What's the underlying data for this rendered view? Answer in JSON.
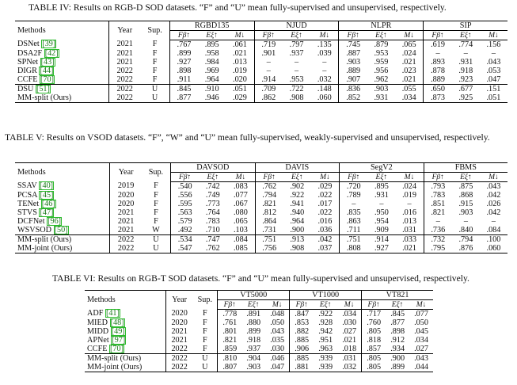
{
  "tables": [
    {
      "caption": "TABLE IV: Results on RGB-D SOD datasets. “F” and “U” mean fully-supervised and unsupervised, respectively.",
      "col_methods": "Methods",
      "col_year": "Year",
      "col_sup": "Sup.",
      "groups": [
        "RGBD135",
        "NJUD",
        "NLPR",
        "SIP"
      ],
      "metrics": [
        "Fβ↑",
        "Eξ↑",
        "M↓"
      ],
      "rows": [
        {
          "name": "DSNet",
          "ref": "[39]",
          "year": "2021",
          "sup": "F",
          "vals": [
            ".767",
            ".895",
            ".061",
            ".719",
            ".797",
            ".135",
            ".745",
            ".879",
            ".065",
            ".619",
            ".774",
            ".156"
          ],
          "group": 1
        },
        {
          "name": "DSA2F",
          "ref": "[42]",
          "year": "2021",
          "sup": "F",
          "vals": [
            ".899",
            ".958",
            ".021",
            ".901",
            ".937",
            ".039",
            ".887",
            ".953",
            ".024",
            "–",
            "–",
            "–"
          ],
          "group": 1
        },
        {
          "name": "SPNet",
          "ref": "[43]",
          "year": "2021",
          "sup": "F",
          "vals": [
            ".927",
            ".984",
            ".013",
            "–",
            "–",
            "–",
            ".903",
            ".959",
            ".021",
            ".893",
            ".931",
            ".043"
          ],
          "group": 1
        },
        {
          "name": "DIGR",
          "ref": "[44]",
          "year": "2022",
          "sup": "F",
          "vals": [
            ".898",
            ".969",
            ".019",
            "–",
            "–",
            "–",
            ".889",
            ".956",
            ".023",
            ".878",
            ".918",
            ".053"
          ],
          "group": 1
        },
        {
          "name": "CCFE",
          "ref": "[70]",
          "year": "2022",
          "sup": "F",
          "vals": [
            ".911",
            ".964",
            ".020",
            ".914",
            ".953",
            ".032",
            ".907",
            ".962",
            ".021",
            ".889",
            ".923",
            ".047"
          ],
          "group": 1
        },
        {
          "name": "DSU",
          "ref": "[51]",
          "year": "2022",
          "sup": "U",
          "vals": [
            ".845",
            ".910",
            ".051",
            ".709",
            ".722",
            ".148",
            ".836",
            ".903",
            ".055",
            ".650",
            ".677",
            ".151"
          ],
          "group": 2
        },
        {
          "name": "MM-split (Ours)",
          "ref": "",
          "year": "2022",
          "sup": "U",
          "vals": [
            ".877",
            ".946",
            ".029",
            ".862",
            ".908",
            ".060",
            ".852",
            ".931",
            ".034",
            ".873",
            ".925",
            ".051"
          ],
          "group": 2
        }
      ]
    },
    {
      "caption": "TABLE V: Results on VSOD datasets. “F”, “W” and “U” mean fully-supervised, weakly-supervised and unsupervised, respectively.",
      "col_methods": "Methods",
      "col_year": "Year",
      "col_sup": "Sup.",
      "groups": [
        "DAVSOD",
        "DAVIS",
        "SegV2",
        "FBMS"
      ],
      "metrics": [
        "Fβ↑",
        "Eξ↑",
        "M↓"
      ],
      "rows": [
        {
          "name": "SSAV",
          "ref": "[40]",
          "year": "2019",
          "sup": "F",
          "vals": [
            ".540",
            ".742",
            ".083",
            ".762",
            ".902",
            ".029",
            ".720",
            ".895",
            ".024",
            ".793",
            ".875",
            ".043"
          ],
          "group": 1
        },
        {
          "name": "PCSA",
          "ref": "[45]",
          "year": "2020",
          "sup": "F",
          "vals": [
            ".556",
            ".749",
            ".077",
            ".794",
            ".922",
            ".022",
            ".789",
            ".931",
            ".019",
            ".783",
            ".868",
            ".042"
          ],
          "group": 1
        },
        {
          "name": "TENet",
          "ref": "[46]",
          "year": "2020",
          "sup": "F",
          "vals": [
            ".595",
            ".773",
            ".067",
            ".821",
            ".941",
            ".017",
            "–",
            "–",
            "–",
            ".851",
            ".915",
            ".026"
          ],
          "group": 1
        },
        {
          "name": "STVS",
          "ref": "[47]",
          "year": "2021",
          "sup": "F",
          "vals": [
            ".563",
            ".764",
            ".080",
            ".812",
            ".940",
            ".022",
            ".835",
            ".950",
            ".016",
            ".821",
            ".903",
            ".042"
          ],
          "group": 1
        },
        {
          "name": "DCFNet",
          "ref": "[96]",
          "year": "2021",
          "sup": "F",
          "vals": [
            ".579",
            ".783",
            ".065",
            ".864",
            ".964",
            ".016",
            ".863",
            ".954",
            ".013",
            "–",
            "–",
            "–"
          ],
          "group": 1
        },
        {
          "name": "WSVSOD",
          "ref": "[50]",
          "year": "2021",
          "sup": "W",
          "vals": [
            ".492",
            ".710",
            ".103",
            ".731",
            ".900",
            ".036",
            ".711",
            ".909",
            ".031",
            ".736",
            ".840",
            ".084"
          ],
          "group": 1
        },
        {
          "name": "MM-split (Ours)",
          "ref": "",
          "year": "2022",
          "sup": "U",
          "vals": [
            ".534",
            ".747",
            ".084",
            ".751",
            ".913",
            ".042",
            ".751",
            ".914",
            ".033",
            ".732",
            ".794",
            ".100"
          ],
          "group": 2
        },
        {
          "name": "MM-joint (Ours)",
          "ref": "",
          "year": "2022",
          "sup": "U",
          "vals": [
            ".547",
            ".762",
            ".085",
            ".756",
            ".908",
            ".037",
            ".808",
            ".927",
            ".021",
            ".795",
            ".876",
            ".060"
          ],
          "group": 2
        }
      ]
    },
    {
      "caption": "TABLE VI: Results on RGB-T SOD datasets. “F” and “U” mean fully-supervised and unsupervised, respectively.",
      "col_methods": "Methods",
      "col_year": "Year",
      "col_sup": "Sup.",
      "groups": [
        "VT5000",
        "VT1000",
        "VT821"
      ],
      "metrics": [
        "Fβ↑",
        "Eξ↑",
        "M↓"
      ],
      "rows": [
        {
          "name": "ADF",
          "ref": "[41]",
          "year": "2020",
          "sup": "F",
          "vals": [
            ".778",
            ".891",
            ".048",
            ".847",
            ".922",
            ".034",
            ".717",
            ".845",
            ".077"
          ],
          "group": 1
        },
        {
          "name": "MIED",
          "ref": "[48]",
          "year": "2020",
          "sup": "F",
          "vals": [
            ".761",
            ".880",
            ".050",
            ".853",
            ".928",
            ".030",
            ".760",
            ".877",
            ".050"
          ],
          "group": 1
        },
        {
          "name": "MIDD",
          "ref": "[49]",
          "year": "2021",
          "sup": "F",
          "vals": [
            ".801",
            ".899",
            ".043",
            ".882",
            ".942",
            ".027",
            ".805",
            ".898",
            ".045"
          ],
          "group": 1
        },
        {
          "name": "APNet",
          "ref": "[97]",
          "year": "2021",
          "sup": "F",
          "vals": [
            ".821",
            ".918",
            ".035",
            ".885",
            ".951",
            ".021",
            ".818",
            ".912",
            ".034"
          ],
          "group": 1
        },
        {
          "name": "CCFE",
          "ref": "[70]",
          "year": "2022",
          "sup": "F",
          "vals": [
            ".859",
            ".937",
            ".030",
            ".906",
            ".963",
            ".018",
            ".857",
            ".934",
            ".027"
          ],
          "group": 1
        },
        {
          "name": "MM-split (Ours)",
          "ref": "",
          "year": "2022",
          "sup": "U",
          "vals": [
            ".810",
            ".904",
            ".046",
            ".885",
            ".939",
            ".031",
            ".805",
            ".900",
            ".043"
          ],
          "group": 2
        },
        {
          "name": "MM-joint (Ours)",
          "ref": "",
          "year": "2022",
          "sup": "U",
          "vals": [
            ".807",
            ".903",
            ".047",
            ".881",
            ".939",
            ".032",
            ".805",
            ".899",
            ".044"
          ],
          "group": 2
        }
      ]
    }
  ],
  "colors": {
    "ref_link": "#1b7a1b",
    "ref_box": "#2dbb2d"
  }
}
